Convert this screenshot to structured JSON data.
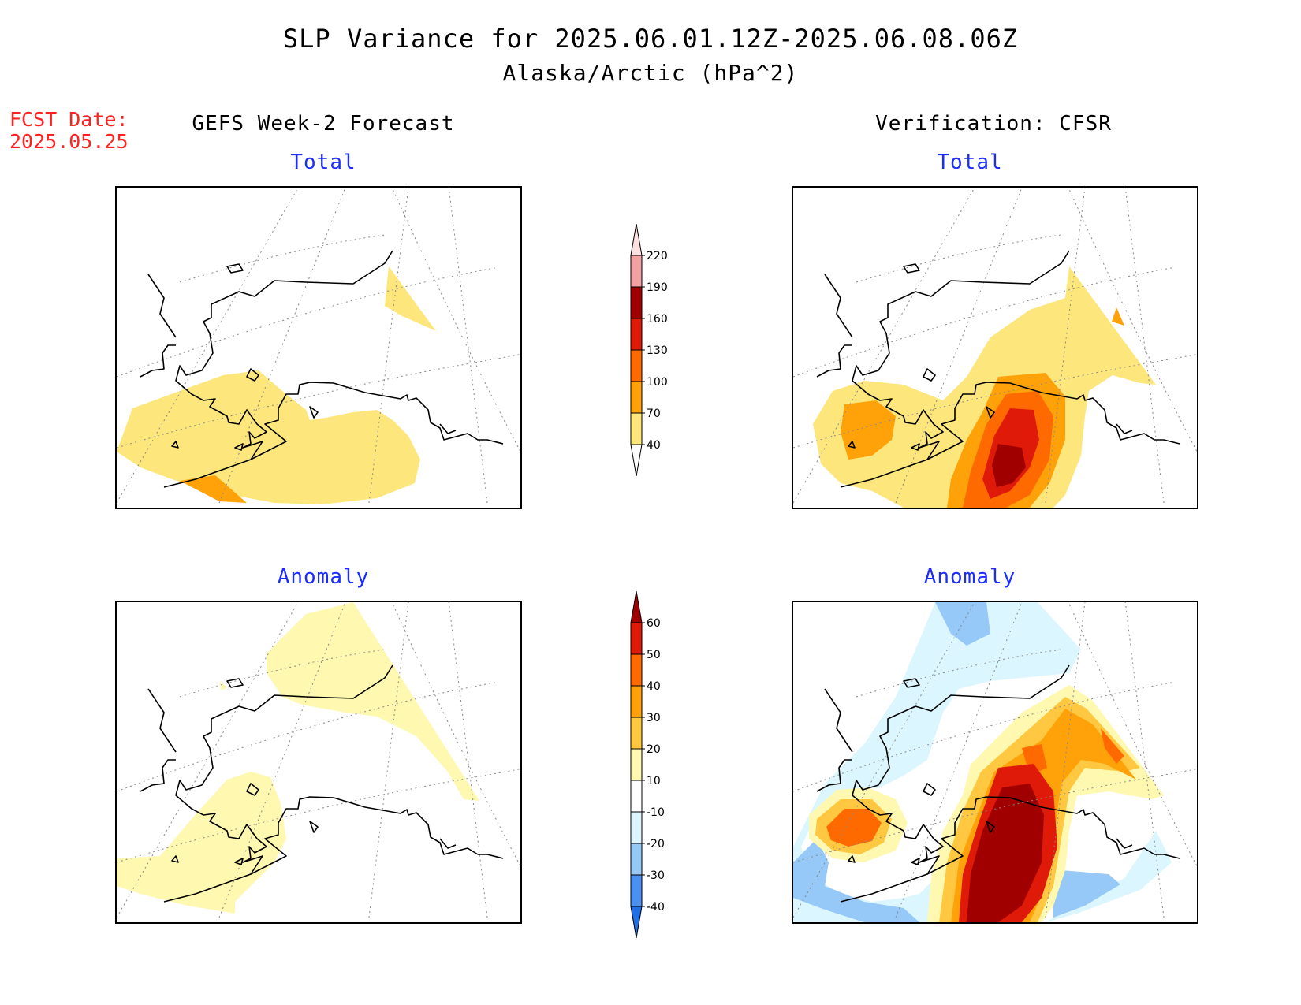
{
  "header": {
    "title": "SLP Variance for 2025.06.01.12Z-2025.06.08.06Z",
    "subtitle": "Alaska/Arctic (hPa^2)",
    "fcst_label": "FCST Date:",
    "fcst_date": "2025.05.25"
  },
  "columns": {
    "left": "GEFS Week-2 Forecast",
    "right": "Verification: CFSR"
  },
  "panels": {
    "forecast_total": "Total",
    "forecast_anomaly": "Anomaly",
    "verification_total": "Total",
    "verification_anomaly": "Anomaly"
  },
  "colorbars": {
    "total": {
      "levels": [
        "40",
        "70",
        "100",
        "130",
        "160",
        "190",
        "220"
      ],
      "colors": [
        "#fde67b",
        "#ffa20a",
        "#ff6a00",
        "#e01a08",
        "#a00000",
        "#f2a0a0",
        "#fde0e0"
      ]
    },
    "anomaly": {
      "levels": [
        "-40",
        "-30",
        "-20",
        "-10",
        "10",
        "20",
        "30",
        "40",
        "50",
        "60"
      ],
      "colors": [
        "#1e6fe8",
        "#4a90f0",
        "#96c8f8",
        "#dcf6ff",
        "#ffffff",
        "#fff8b0",
        "#ffc840",
        "#ffa20a",
        "#ff6a00",
        "#e01a08",
        "#a00000"
      ]
    }
  }
}
